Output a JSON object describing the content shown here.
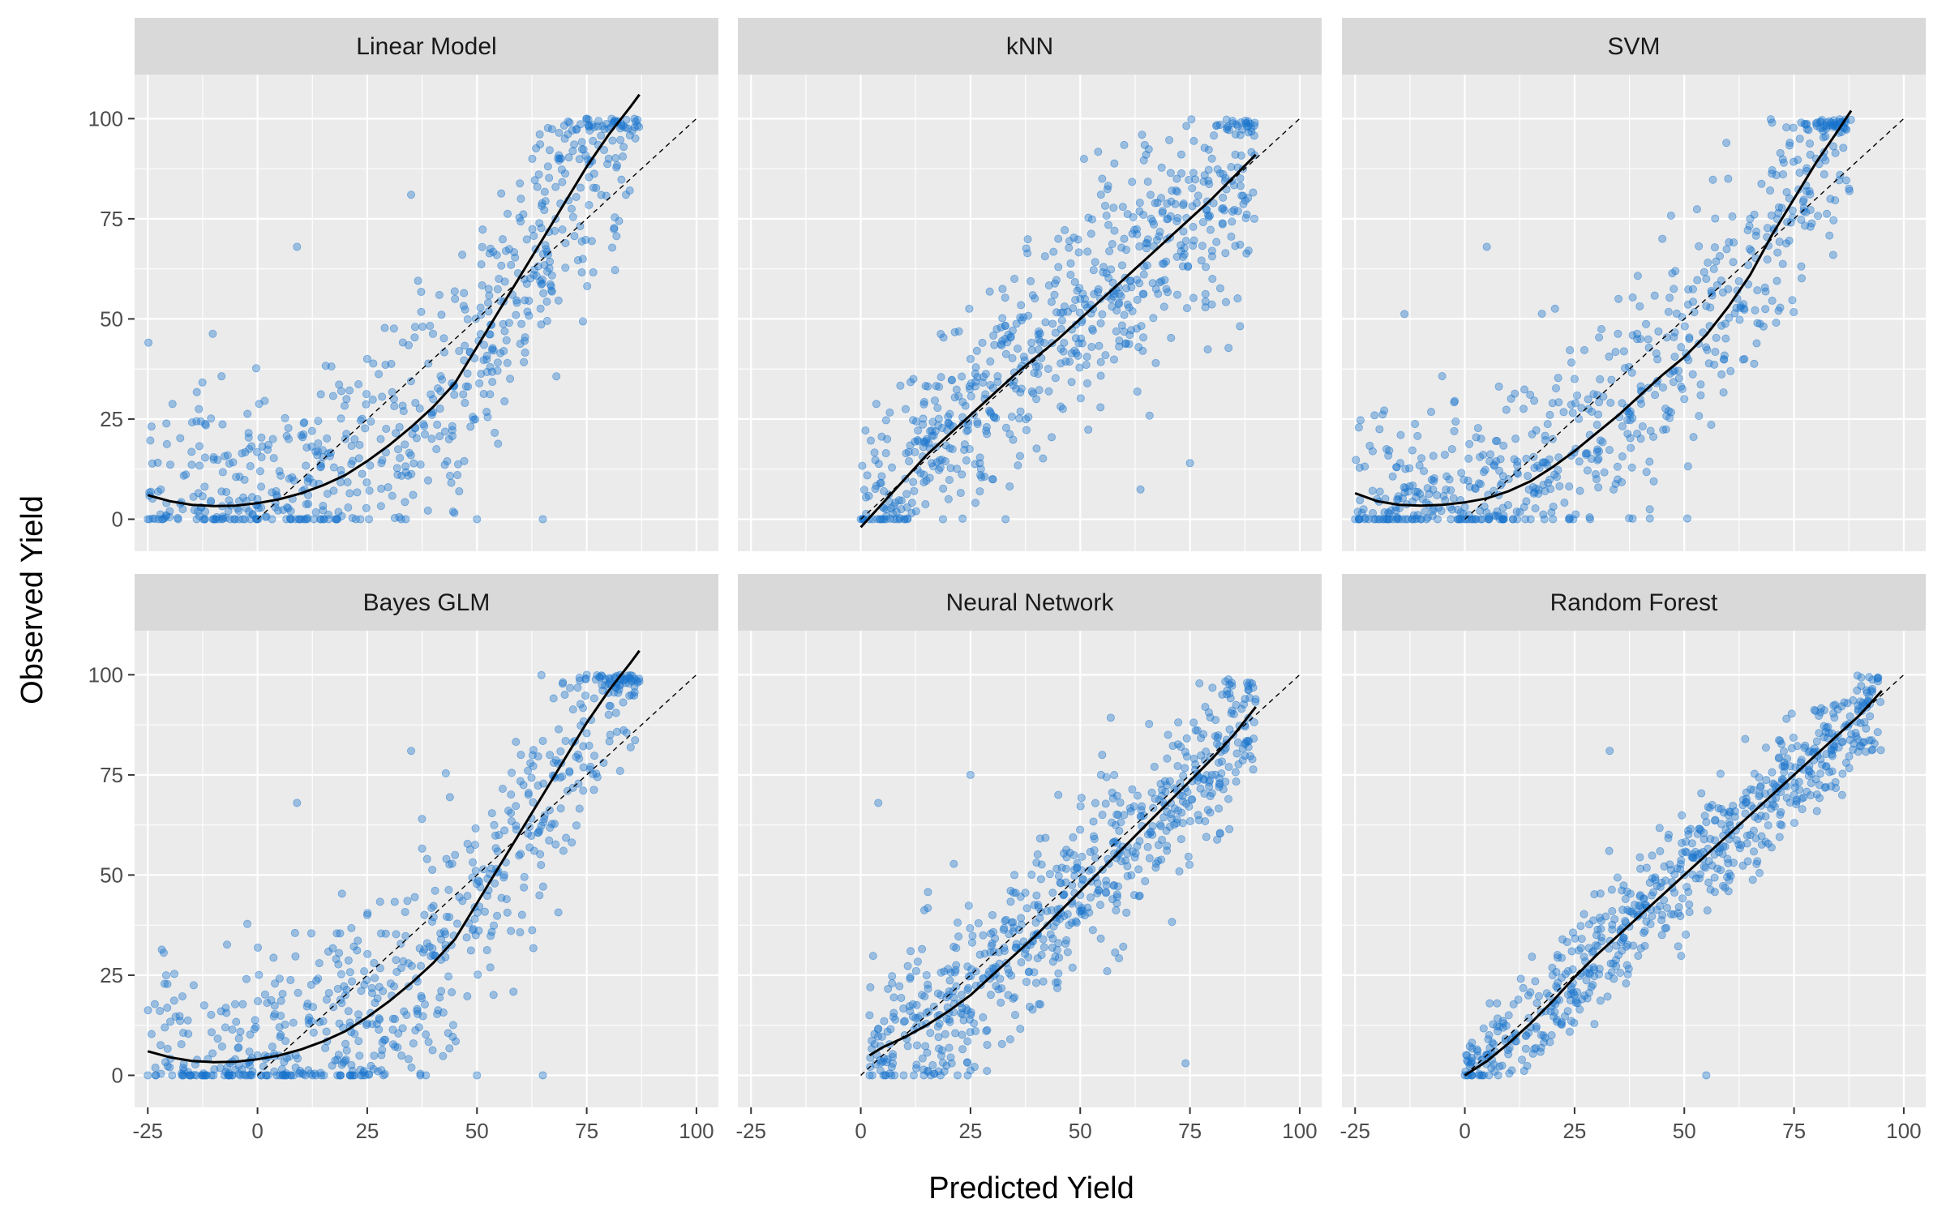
{
  "chart_data": {
    "type": "scatter",
    "xlabel": "Predicted Yield",
    "ylabel": "Observed Yield",
    "xlim": [
      -28,
      105
    ],
    "ylim": [
      -8,
      111
    ],
    "x_ticks": [
      -25,
      0,
      25,
      50,
      75,
      100
    ],
    "y_ticks": [
      0,
      25,
      50,
      75,
      100
    ],
    "x_tick_labels": [
      "-25",
      "0",
      "25",
      "50",
      "75",
      "100"
    ],
    "y_tick_labels": [
      "0",
      "25",
      "50",
      "75",
      "100"
    ],
    "grid": true,
    "point_color": "#1874cd",
    "line_color": "#000000",
    "reference_line": {
      "style": "dashed",
      "x": [
        0,
        100
      ],
      "y": [
        0,
        100
      ]
    },
    "panels": [
      {
        "title": "Linear Model",
        "smooth": {
          "x": [
            -25,
            -20,
            -15,
            -10,
            -5,
            0,
            5,
            10,
            15,
            20,
            25,
            30,
            35,
            40,
            45,
            50,
            55,
            60,
            65,
            70,
            75,
            80,
            85,
            87
          ],
          "y": [
            6,
            4.5,
            3.6,
            3.3,
            3.4,
            4,
            5,
            6.5,
            8.5,
            11,
            14.5,
            18.5,
            23,
            28,
            34,
            43,
            52,
            61,
            70,
            79,
            88,
            96,
            103,
            106
          ]
        },
        "points_sample": [
          [
            -25,
            0
          ],
          [
            -20,
            2
          ],
          [
            -10,
            0
          ],
          [
            0,
            5
          ],
          [
            5,
            12
          ],
          [
            9,
            68
          ],
          [
            20,
            20
          ],
          [
            25,
            40
          ],
          [
            35,
            81
          ],
          [
            40,
            30
          ],
          [
            45,
            55
          ],
          [
            50,
            0
          ],
          [
            55,
            60
          ],
          [
            60,
            80
          ],
          [
            65,
            0
          ],
          [
            70,
            95
          ],
          [
            75,
            100
          ],
          [
            80,
            90
          ]
        ]
      },
      {
        "title": "kNN",
        "smooth": {
          "x": [
            0,
            5,
            10,
            15,
            20,
            25,
            30,
            35,
            40,
            45,
            50,
            55,
            60,
            65,
            70,
            75,
            80,
            85,
            90
          ],
          "y": [
            -2,
            4,
            10,
            16,
            21,
            26,
            31,
            36,
            40.5,
            45,
            50,
            55,
            60,
            65,
            70,
            75,
            80,
            85.5,
            91
          ]
        },
        "points_sample": [
          [
            0,
            0
          ],
          [
            5,
            3
          ],
          [
            10,
            0
          ],
          [
            15,
            20
          ],
          [
            20,
            5
          ],
          [
            25,
            40
          ],
          [
            30,
            10
          ],
          [
            35,
            60
          ],
          [
            40,
            30
          ],
          [
            45,
            70
          ],
          [
            50,
            55
          ],
          [
            55,
            85
          ],
          [
            60,
            70
          ],
          [
            65,
            91
          ],
          [
            70,
            75
          ],
          [
            75,
            14
          ],
          [
            80,
            90
          ],
          [
            88,
            98
          ]
        ]
      },
      {
        "title": "SVM",
        "smooth": {
          "x": [
            -25,
            -20,
            -15,
            -10,
            -5,
            0,
            5,
            10,
            15,
            20,
            25,
            30,
            35,
            40,
            45,
            50,
            55,
            60,
            65,
            70,
            75,
            80,
            85,
            88
          ],
          "y": [
            6.5,
            4.5,
            3.6,
            3.4,
            3.6,
            4.2,
            5.2,
            7,
            9.5,
            13,
            17,
            21.5,
            26,
            31,
            36,
            40.5,
            46,
            53,
            61,
            71,
            80,
            89,
            97,
            102
          ]
        },
        "points_sample": [
          [
            -25,
            0
          ],
          [
            -20,
            5
          ],
          [
            -10,
            0
          ],
          [
            0,
            3
          ],
          [
            5,
            68
          ],
          [
            10,
            10
          ],
          [
            20,
            20
          ],
          [
            25,
            35
          ],
          [
            30,
            10
          ],
          [
            35,
            55
          ],
          [
            40,
            45
          ],
          [
            45,
            70
          ],
          [
            50,
            30
          ],
          [
            55,
            60
          ],
          [
            60,
            85
          ],
          [
            65,
            75
          ],
          [
            70,
            99
          ],
          [
            80,
            90
          ]
        ]
      },
      {
        "title": "Bayes GLM",
        "smooth": {
          "x": [
            -25,
            -20,
            -15,
            -10,
            -5,
            0,
            5,
            10,
            15,
            20,
            25,
            30,
            35,
            40,
            45,
            50,
            55,
            60,
            65,
            70,
            75,
            80,
            85,
            87
          ],
          "y": [
            6,
            4.5,
            3.6,
            3.3,
            3.4,
            4,
            5,
            6.5,
            8.5,
            11,
            14.5,
            18.5,
            23,
            28,
            34,
            43,
            52,
            61,
            70,
            79,
            88,
            96,
            103,
            106
          ]
        },
        "points_sample": [
          [
            -25,
            0
          ],
          [
            -20,
            2
          ],
          [
            -10,
            0
          ],
          [
            0,
            5
          ],
          [
            5,
            12
          ],
          [
            9,
            68
          ],
          [
            20,
            20
          ],
          [
            25,
            40
          ],
          [
            35,
            81
          ],
          [
            40,
            30
          ],
          [
            45,
            55
          ],
          [
            50,
            0
          ],
          [
            55,
            60
          ],
          [
            60,
            80
          ],
          [
            65,
            0
          ],
          [
            70,
            95
          ],
          [
            75,
            100
          ],
          [
            80,
            90
          ]
        ]
      },
      {
        "title": "Neural Network",
        "smooth": {
          "x": [
            2,
            5,
            10,
            15,
            20,
            25,
            30,
            35,
            40,
            45,
            50,
            55,
            60,
            65,
            70,
            75,
            80,
            85,
            90
          ],
          "y": [
            5,
            7,
            9.5,
            12.5,
            16,
            20,
            25,
            30,
            35,
            40.5,
            46,
            51.5,
            57,
            62.5,
            68,
            73.5,
            79,
            85,
            92
          ]
        },
        "points_sample": [
          [
            2,
            0
          ],
          [
            2,
            15
          ],
          [
            4,
            68
          ],
          [
            10,
            10
          ],
          [
            15,
            25
          ],
          [
            20,
            20
          ],
          [
            25,
            75
          ],
          [
            30,
            40
          ],
          [
            35,
            50
          ],
          [
            40,
            35
          ],
          [
            45,
            70
          ],
          [
            50,
            45
          ],
          [
            55,
            80
          ],
          [
            60,
            65
          ],
          [
            70,
            85
          ],
          [
            74,
            3
          ],
          [
            80,
            75
          ],
          [
            88,
            98
          ]
        ]
      },
      {
        "title": "Random Forest",
        "smooth": {
          "x": [
            0,
            5,
            10,
            15,
            20,
            25,
            30,
            35,
            40,
            45,
            50,
            55,
            60,
            65,
            70,
            75,
            80,
            85,
            90,
            95
          ],
          "y": [
            0,
            3.5,
            8,
            13,
            18.5,
            24.5,
            30,
            35,
            40,
            45,
            50,
            55,
            60,
            65,
            70,
            75,
            80,
            85,
            90,
            96
          ]
        },
        "points_sample": [
          [
            0,
            0
          ],
          [
            5,
            5
          ],
          [
            10,
            15
          ],
          [
            15,
            12
          ],
          [
            20,
            25
          ],
          [
            25,
            20
          ],
          [
            30,
            35
          ],
          [
            33,
            81
          ],
          [
            35,
            30
          ],
          [
            40,
            45
          ],
          [
            45,
            40
          ],
          [
            50,
            50
          ],
          [
            55,
            0
          ],
          [
            60,
            65
          ],
          [
            65,
            60
          ],
          [
            75,
            70
          ],
          [
            85,
            85
          ],
          [
            94,
            99
          ]
        ]
      }
    ]
  }
}
